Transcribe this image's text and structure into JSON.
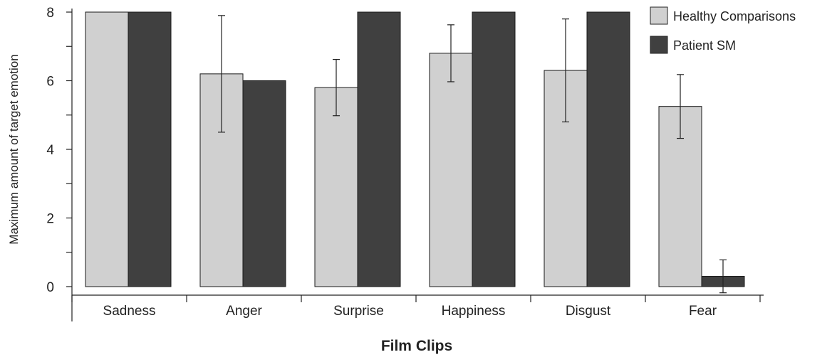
{
  "chart_data": {
    "type": "bar",
    "title": "",
    "xlabel": "Film Clips",
    "ylabel": "Maximum amount of target emotion",
    "ylim": [
      0,
      8
    ],
    "yticks": [
      0,
      2,
      4,
      6,
      8
    ],
    "categories": [
      "Sadness",
      "Anger",
      "Surprise",
      "Happiness",
      "Disgust",
      "Fear"
    ],
    "series": [
      {
        "name": "Healthy Comparisons",
        "color": "#d0d0d0",
        "values": [
          8.0,
          6.2,
          5.8,
          6.8,
          6.3,
          5.25
        ],
        "error": [
          0,
          1.7,
          0.82,
          0.83,
          1.5,
          0.93
        ]
      },
      {
        "name": "Patient SM",
        "color": "#404040",
        "values": [
          8.0,
          6.0,
          8.0,
          8.0,
          8.0,
          0.3
        ],
        "error": [
          0,
          0,
          0,
          0,
          0,
          0.48
        ]
      }
    ],
    "legend_position": "top-right",
    "grid": false
  }
}
